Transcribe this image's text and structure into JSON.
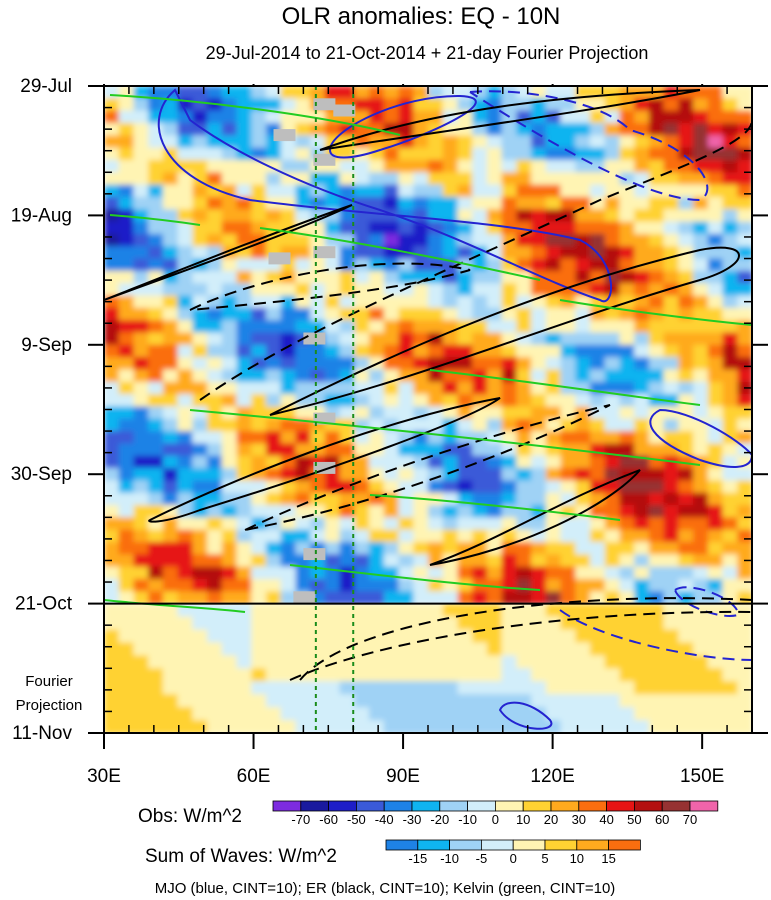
{
  "chart_data": {
    "type": "heatmap",
    "title": "OLR anomalies: EQ - 10N",
    "subtitle": "29-Jul-2014 to 21-Oct-2014 + 21-day Fourier Projection",
    "x_axis": {
      "range": [
        30,
        160
      ],
      "ticks": [
        {
          "value": 30,
          "label": "30E"
        },
        {
          "value": 60,
          "label": "60E"
        },
        {
          "value": 90,
          "label": "90E"
        },
        {
          "value": 120,
          "label": "120E"
        },
        {
          "value": 150,
          "label": "150E"
        }
      ]
    },
    "y_axis": {
      "range_days": [
        0,
        105
      ],
      "direction": "time increases downward",
      "ticks": [
        {
          "day": 0,
          "label": "29-Jul"
        },
        {
          "day": 21,
          "label": "19-Aug"
        },
        {
          "day": 42,
          "label": "9-Sep"
        },
        {
          "day": 63,
          "label": "30-Sep"
        },
        {
          "day": 84,
          "label": "21-Oct"
        },
        {
          "day": 105,
          "label": "11-Nov"
        }
      ]
    },
    "projection": {
      "start_day": 84,
      "end_day": 105,
      "label_line1": "Fourier",
      "label_line2": "Projection"
    },
    "reference_longitudes": [
      72.5,
      80
    ],
    "legend_obs": {
      "label": "Obs: W/m^2",
      "levels": [
        "-70",
        "-60",
        "-50",
        "-40",
        "-30",
        "-20",
        "-10",
        "0",
        "10",
        "20",
        "30",
        "40",
        "50",
        "60",
        "70"
      ],
      "colors": [
        "#7d2be0",
        "#1a1a9e",
        "#1e1ec8",
        "#3a5ad8",
        "#1e82e6",
        "#0fb4f0",
        "#9fd2f5",
        "#d2eefa",
        "#fff4b3",
        "#ffd232",
        "#ffaa1e",
        "#fa6e0f",
        "#e61414",
        "#b40f0f",
        "#963232",
        "#f064aa"
      ]
    },
    "legend_waves": {
      "label": "Sum of Waves: W/m^2",
      "levels": [
        "-15",
        "-10",
        "-5",
        "0",
        "5",
        "10",
        "15"
      ],
      "colors": [
        "#1e82e6",
        "#0fb4f0",
        "#9fd2f5",
        "#d2eefa",
        "#fff4b3",
        "#ffd232",
        "#ffaa1e",
        "#fa6e0f"
      ]
    },
    "footer": "MJO (blue, CINT=10); ER (black, CINT=10); Kelvin (green, CINT=10)",
    "contour_series": [
      {
        "name": "MJO",
        "color": "#2424d0",
        "cint": 10
      },
      {
        "name": "ER",
        "color": "#000000",
        "cint": 10
      },
      {
        "name": "Kelvin",
        "color": "#22cc22",
        "cint": 10
      }
    ]
  }
}
